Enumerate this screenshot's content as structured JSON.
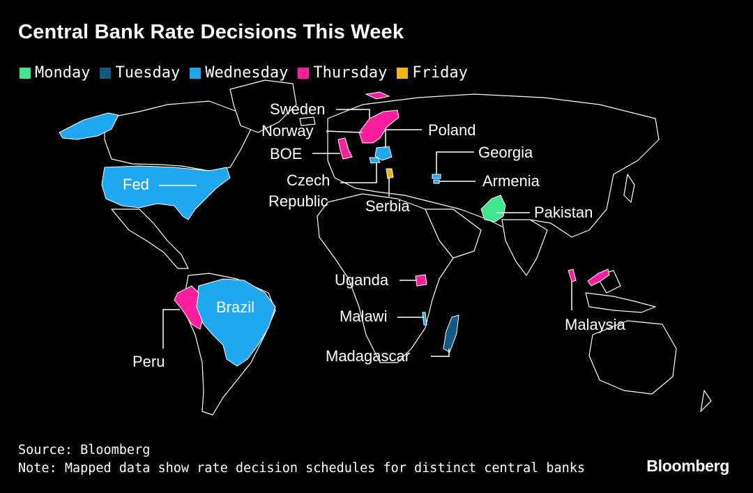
{
  "title": "Central Bank Rate Decisions This Week",
  "legend": [
    {
      "label": "Monday",
      "color": "#3ee68d"
    },
    {
      "label": "Tuesday",
      "color": "#0f5a85"
    },
    {
      "label": "Wednesday",
      "color": "#1fa8f0"
    },
    {
      "label": "Thursday",
      "color": "#ff1e9e"
    },
    {
      "label": "Friday",
      "color": "#f5b800"
    }
  ],
  "labels": {
    "sweden": "Sweden",
    "norway": "Norway",
    "poland": "Poland",
    "boe": "BOE",
    "georgia": "Georgia",
    "czech_line1": "Czech",
    "czech_line2": "Republic",
    "armenia": "Armenia",
    "serbia": "Serbia",
    "pakistan": "Pakistan",
    "fed": "Fed",
    "uganda": "Uganda",
    "malawi": "Malawi",
    "malaysia": "Malaysia",
    "brazil": "Brazil",
    "peru": "Peru",
    "madagascar": "Madagascar"
  },
  "source": "Source: Bloomberg",
  "note": "Note: Mapped data show rate decision schedules for distinct central banks",
  "brand": "Bloomberg"
}
